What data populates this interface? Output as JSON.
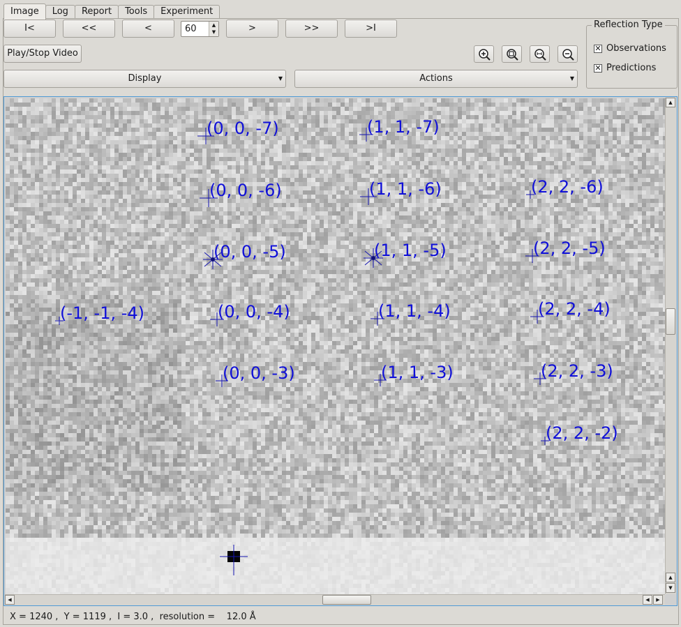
{
  "tabs": [
    {
      "label": "Image",
      "active": true
    },
    {
      "label": "Log",
      "active": false
    },
    {
      "label": "Report",
      "active": false
    },
    {
      "label": "Tools",
      "active": false
    },
    {
      "label": "Experiment",
      "active": false
    }
  ],
  "nav": {
    "first": "I<",
    "back_fast": "<<",
    "back": "<",
    "frame": "60",
    "forward": ">",
    "forward_fast": ">>",
    "last": ">I",
    "play_stop": "Play/Stop Video"
  },
  "zoom": {
    "icons": [
      "zoom-in-icon",
      "zoom-fit-icon",
      "zoom-reset-icon",
      "zoom-out-icon"
    ]
  },
  "display_combo": "Display",
  "actions_combo": "Actions",
  "reflection_type": {
    "title": "Reflection Type",
    "observations": "Observations",
    "observations_checked": true,
    "predictions": "Predictions",
    "predictions_checked": true
  },
  "reflections": [
    {
      "hkl": "(0, 0, -7)"
    },
    {
      "hkl": "(1, 1, -7)"
    },
    {
      "hkl": "(0, 0, -6)"
    },
    {
      "hkl": "(1, 1, -6)"
    },
    {
      "hkl": "(2, 2, -6)"
    },
    {
      "hkl": "(0, 0, -5)"
    },
    {
      "hkl": "(1, 1, -5)"
    },
    {
      "hkl": "(2, 2, -5)"
    },
    {
      "hkl": "(-1, -1, -4)"
    },
    {
      "hkl": "(0, 0, -4)"
    },
    {
      "hkl": "(1, 1, -4)"
    },
    {
      "hkl": "(2, 2, -4)"
    },
    {
      "hkl": "(0, 0, -3)"
    },
    {
      "hkl": "(1, 1, -3)"
    },
    {
      "hkl": "(2, 2, -3)"
    },
    {
      "hkl": "(2, 2, -2)"
    }
  ],
  "colors": {
    "label": "#1010d8",
    "marker": "#1515b0"
  },
  "status": {
    "text": "X = 1240 ,  Y = 1119 ,  I = 3.0 ,  resolution =    12.0 Å"
  }
}
